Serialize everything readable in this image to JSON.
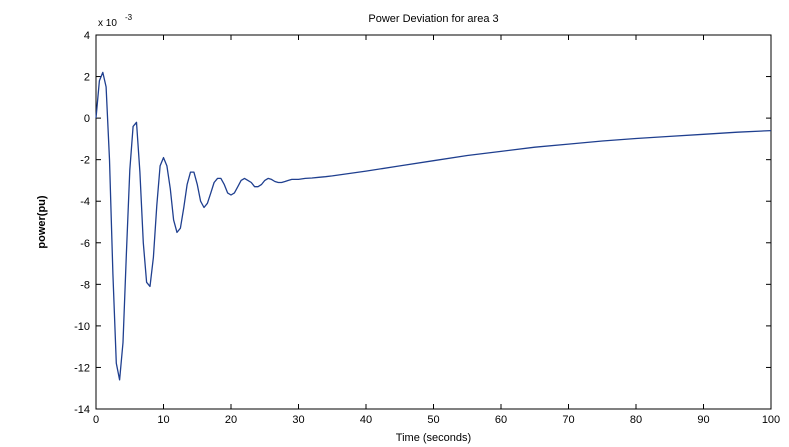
{
  "chart_data": {
    "type": "line",
    "title": "Power Deviation for area 3",
    "xlabel": "Time (seconds)",
    "ylabel": "power(pu)",
    "y_exponent_label": "x 10",
    "y_exponent_power": "-3",
    "xlim": [
      0,
      100
    ],
    "ylim": [
      -14,
      4
    ],
    "xticks": [
      0,
      10,
      20,
      30,
      40,
      50,
      60,
      70,
      80,
      90,
      100
    ],
    "yticks": [
      -14,
      -12,
      -10,
      -8,
      -6,
      -4,
      -2,
      0,
      2,
      4
    ],
    "grid": false,
    "series": [
      {
        "color": "#1f3f8f",
        "x": [
          0,
          0.5,
          1,
          1.5,
          2,
          2.5,
          3,
          3.5,
          4,
          4.5,
          5,
          5.5,
          6,
          6.5,
          7,
          7.5,
          8,
          8.5,
          9,
          9.5,
          10,
          10.5,
          11,
          11.5,
          12,
          12.5,
          13,
          13.5,
          14,
          14.5,
          15,
          15.5,
          16,
          16.5,
          17,
          17.5,
          18,
          18.5,
          19,
          19.5,
          20,
          20.5,
          21,
          21.5,
          22,
          22.5,
          23,
          23.5,
          24,
          24.5,
          25,
          25.5,
          26,
          26.5,
          27,
          27.5,
          28,
          28.5,
          29,
          29.5,
          30,
          31,
          32,
          33,
          34,
          35,
          40,
          45,
          50,
          55,
          60,
          65,
          70,
          75,
          80,
          85,
          90,
          95,
          100
        ],
        "values": [
          0,
          1.8,
          2.2,
          1.5,
          -2.0,
          -7.5,
          -11.8,
          -12.6,
          -10.8,
          -6.5,
          -2.5,
          -0.4,
          -0.2,
          -2.6,
          -6.0,
          -7.9,
          -8.1,
          -6.7,
          -4.2,
          -2.3,
          -1.9,
          -2.3,
          -3.4,
          -4.9,
          -5.5,
          -5.3,
          -4.3,
          -3.2,
          -2.6,
          -2.6,
          -3.2,
          -4.0,
          -4.3,
          -4.1,
          -3.6,
          -3.1,
          -2.9,
          -2.9,
          -3.2,
          -3.6,
          -3.7,
          -3.6,
          -3.3,
          -3.0,
          -2.9,
          -3.0,
          -3.1,
          -3.3,
          -3.3,
          -3.2,
          -3.0,
          -2.9,
          -2.95,
          -3.05,
          -3.1,
          -3.1,
          -3.05,
          -3.0,
          -2.95,
          -2.95,
          -2.95,
          -2.9,
          -2.88,
          -2.85,
          -2.82,
          -2.78,
          -2.55,
          -2.3,
          -2.05,
          -1.8,
          -1.6,
          -1.4,
          -1.25,
          -1.1,
          -0.98,
          -0.88,
          -0.78,
          -0.68,
          -0.6
        ]
      }
    ]
  }
}
